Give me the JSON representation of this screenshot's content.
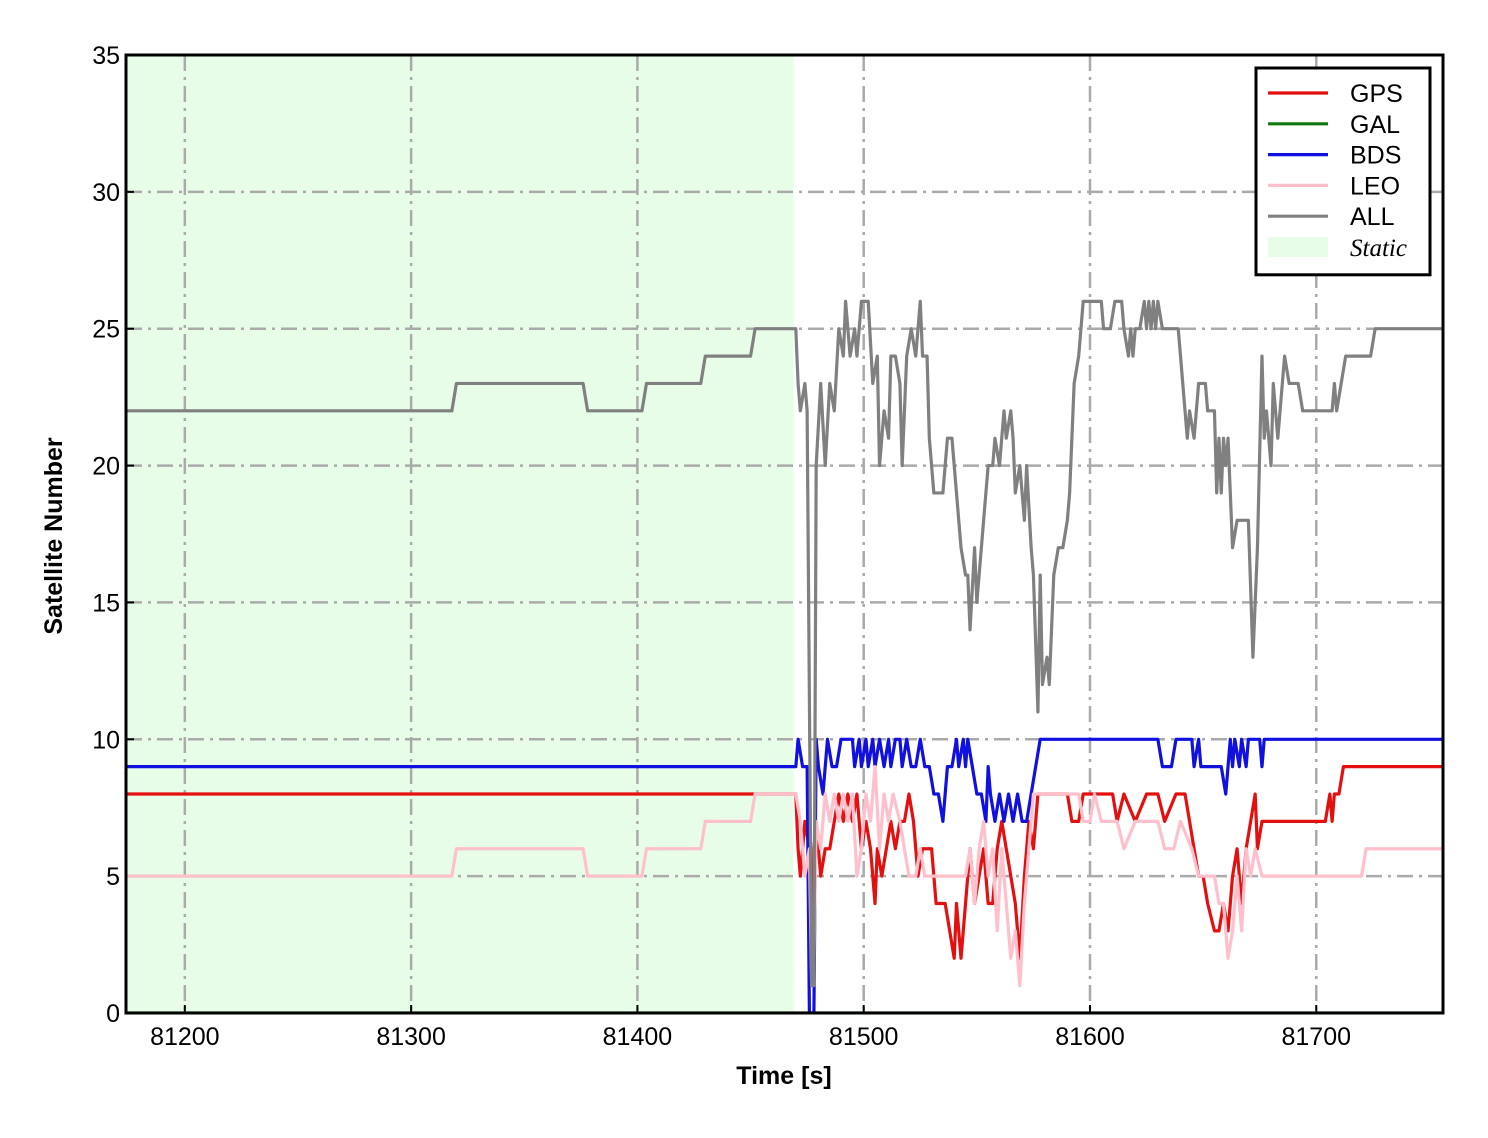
{
  "chart_data": {
    "type": "line",
    "xlabel": "Time [s]",
    "ylabel": "Satellite Number",
    "xlim": [
      81174,
      81756
    ],
    "ylim": [
      0,
      35
    ],
    "xticks": [
      81200,
      81300,
      81400,
      81500,
      81600,
      81700
    ],
    "yticks": [
      0,
      5,
      10,
      15,
      20,
      25,
      30,
      35
    ],
    "grid": true,
    "legend": "upper right",
    "static_span": {
      "label": "Static",
      "xlim": [
        81174,
        81469
      ],
      "color": "#e8fde8"
    },
    "series": [
      {
        "name": "GPS",
        "color": "#e41010",
        "x": [
          81174,
          81470,
          81471,
          81472,
          81474,
          81476,
          81477,
          81478,
          81479,
          81481,
          81483,
          81485,
          81487,
          81489,
          81491,
          81493,
          81495,
          81497,
          81499,
          81501,
          81503,
          81505,
          81506,
          81508,
          81510,
          81512,
          81514,
          81516,
          81518,
          81520,
          81522,
          81524,
          81526,
          81530,
          81532,
          81536,
          81538,
          81540,
          81541,
          81543,
          81545,
          81547,
          81549,
          81551,
          81553,
          81555,
          81557,
          81559,
          81561,
          81563,
          81565,
          81567,
          81569,
          81571,
          81573,
          81575,
          81577,
          81590,
          81592,
          81595,
          81597,
          81610,
          81612,
          81615,
          81620,
          81625,
          81630,
          81633,
          81638,
          81642,
          81644,
          81646,
          81648,
          81650,
          81652,
          81655,
          81657,
          81659,
          81661,
          81663,
          81665,
          81667,
          81669,
          81671,
          81673,
          81674,
          81676,
          81704,
          81706,
          81707,
          81708,
          81710,
          81712,
          81756
        ],
        "values": [
          8,
          8,
          6,
          5,
          7,
          6,
          1,
          6,
          7,
          5,
          6,
          6,
          7,
          8,
          7,
          8,
          7,
          8,
          6,
          7,
          6,
          4,
          6,
          5,
          6,
          7,
          6,
          7,
          7,
          8,
          7,
          5,
          6,
          6,
          4,
          4,
          3,
          2,
          4,
          2,
          4,
          6,
          4,
          5,
          6,
          4,
          4,
          6,
          7,
          6,
          5,
          4,
          2,
          5,
          7,
          6,
          8,
          8,
          7,
          7,
          8,
          8,
          7,
          8,
          7,
          8,
          8,
          7,
          8,
          8,
          7,
          6,
          5,
          5,
          4,
          3,
          3,
          4,
          3,
          5,
          6,
          4,
          6,
          7,
          8,
          6,
          7,
          7,
          8,
          7,
          8,
          8,
          9,
          9
        ]
      },
      {
        "name": "GAL",
        "color": "#127a12",
        "x": [
          81174,
          81756
        ],
        "values": [
          0,
          0
        ]
      },
      {
        "name": "BDS",
        "color": "#1010e0",
        "x": [
          81174,
          81470,
          81471,
          81473,
          81475,
          81476,
          81478,
          81479,
          81480,
          81482,
          81484,
          81486,
          81488,
          81490,
          81495,
          81496,
          81498,
          81499,
          81501,
          81502,
          81504,
          81505,
          81507,
          81509,
          81511,
          81512,
          81514,
          81516,
          81517,
          81519,
          81521,
          81523,
          81525,
          81527,
          81529,
          81531,
          81533,
          81535,
          81537,
          81539,
          81541,
          81542,
          81544,
          81545,
          81546,
          81548,
          81550,
          81552,
          81554,
          81555,
          81556,
          81558,
          81560,
          81562,
          81564,
          81566,
          81568,
          81570,
          81572,
          81574,
          81576,
          81578,
          81630,
          81632,
          81636,
          81638,
          81645,
          81646,
          81648,
          81649,
          81658,
          81660,
          81662,
          81663,
          81664,
          81666,
          81667,
          81669,
          81670,
          81675,
          81676,
          81677,
          81756
        ],
        "values": [
          9,
          9,
          10,
          9,
          9,
          0,
          0,
          10,
          9,
          8,
          10,
          9,
          9,
          10,
          10,
          9,
          10,
          9,
          10,
          9,
          10,
          9,
          10,
          9,
          10,
          9,
          10,
          10,
          9,
          10,
          9,
          9,
          10,
          9,
          9,
          8,
          8,
          7,
          9,
          9,
          10,
          9,
          10,
          9,
          10,
          9,
          8,
          8,
          7,
          9,
          8,
          7,
          8,
          7,
          8,
          7,
          8,
          7,
          7,
          8,
          9,
          10,
          10,
          9,
          9,
          10,
          10,
          9,
          10,
          9,
          9,
          8,
          10,
          9,
          10,
          9,
          10,
          9,
          10,
          10,
          9,
          10,
          10
        ]
      },
      {
        "name": "LEO",
        "color": "#ffc0cb",
        "x": [
          81174,
          81318,
          81320,
          81376,
          81378,
          81402,
          81404,
          81428,
          81430,
          81450,
          81452,
          81470,
          81472,
          81474,
          81476,
          81477,
          81478,
          81479,
          81481,
          81483,
          81485,
          81487,
          81489,
          81491,
          81493,
          81495,
          81497,
          81499,
          81501,
          81503,
          81505,
          81507,
          81509,
          81511,
          81513,
          81516,
          81518,
          81520,
          81523,
          81525,
          81527,
          81545,
          81547,
          81549,
          81551,
          81553,
          81555,
          81557,
          81559,
          81561,
          81563,
          81565,
          81567,
          81569,
          81571,
          81573,
          81575,
          81595,
          81597,
          81600,
          81602,
          81605,
          81612,
          81615,
          81620,
          81630,
          81633,
          81637,
          81640,
          81645,
          81648,
          81655,
          81657,
          81659,
          81661,
          81663,
          81665,
          81667,
          81669,
          81671,
          81673,
          81676,
          81720,
          81722,
          81756
        ],
        "values": [
          5,
          5,
          6,
          6,
          5,
          5,
          6,
          6,
          7,
          7,
          8,
          8,
          7,
          5,
          6,
          1,
          2,
          7,
          6,
          8,
          7,
          8,
          7,
          8,
          7,
          8,
          5,
          6,
          8,
          7,
          9,
          6,
          8,
          7,
          8,
          7,
          6,
          5,
          5,
          6,
          5,
          5,
          6,
          4,
          6,
          7,
          5,
          6,
          3,
          6,
          4,
          2,
          3,
          1,
          4,
          6,
          8,
          8,
          7,
          7,
          8,
          7,
          7,
          6,
          7,
          7,
          6,
          6,
          7,
          6,
          5,
          5,
          4,
          4,
          2,
          3,
          5,
          3,
          6,
          5,
          6,
          5,
          5,
          6,
          6
        ]
      },
      {
        "name": "ALL",
        "color": "#808080",
        "x": [
          81174,
          81318,
          81320,
          81376,
          81378,
          81402,
          81404,
          81428,
          81430,
          81450,
          81452,
          81470,
          81471,
          81472,
          81474,
          81475,
          81477,
          81478,
          81479,
          81481,
          81483,
          81485,
          81487,
          81489,
          81491,
          81492,
          81494,
          81496,
          81497,
          81499,
          81502,
          81504,
          81506,
          81507,
          81509,
          81511,
          81512,
          81514,
          81516,
          81517,
          81519,
          81521,
          81523,
          81525,
          81526,
          81528,
          81529,
          81531,
          81535,
          81537,
          81539,
          81541,
          81543,
          81545,
          81546,
          81547,
          81549,
          81550,
          81553,
          81555,
          81557,
          81558,
          81560,
          81562,
          81563,
          81565,
          81566,
          81567,
          81569,
          81571,
          81572,
          81574,
          81575,
          81577,
          81578,
          81579,
          81581,
          81582,
          81584,
          81586,
          81588,
          81590,
          81591,
          81593,
          81595,
          81597,
          81605,
          81606,
          81609,
          81611,
          81614,
          81615,
          81617,
          81618,
          81619,
          81620,
          81622,
          81624,
          81625,
          81626,
          81627,
          81628,
          81629,
          81630,
          81632,
          81639,
          81641,
          81643,
          81644,
          81646,
          81648,
          81651,
          81652,
          81655,
          81656,
          81657,
          81658,
          81659,
          81660,
          81661,
          81663,
          81665,
          81670,
          81672,
          81674,
          81676,
          81677,
          81678,
          81680,
          81681,
          81683,
          81684,
          81686,
          81688,
          81692,
          81694,
          81707,
          81708,
          81709,
          81711,
          81713,
          81724,
          81726,
          81756
        ],
        "values": [
          22,
          22,
          23,
          23,
          22,
          22,
          23,
          23,
          24,
          24,
          25,
          25,
          23,
          22,
          23,
          22,
          1,
          1,
          20,
          23,
          20,
          23,
          22,
          25,
          24,
          26,
          24,
          25,
          24,
          26,
          26,
          23,
          24,
          20,
          22,
          21,
          24,
          24,
          23,
          20,
          24,
          25,
          24,
          26,
          24,
          24,
          21,
          19,
          19,
          21,
          21,
          19,
          17,
          16,
          16,
          14,
          17,
          15,
          18,
          20,
          20,
          21,
          20,
          22,
          21,
          22,
          21,
          19,
          20,
          18,
          20,
          17,
          16,
          11,
          16,
          12,
          13,
          12,
          16,
          17,
          17,
          18,
          19,
          23,
          24,
          26,
          26,
          25,
          25,
          26,
          26,
          25,
          24,
          25,
          24,
          25,
          25,
          26,
          25,
          26,
          25,
          26,
          25,
          26,
          25,
          25,
          23,
          21,
          22,
          21,
          23,
          23,
          22,
          22,
          19,
          21,
          19,
          21,
          20,
          21,
          17,
          18,
          18,
          13,
          17,
          24,
          21,
          22,
          20,
          23,
          21,
          22,
          24,
          23,
          23,
          22,
          22,
          23,
          22,
          23,
          24,
          24,
          25,
          25
        ]
      }
    ]
  }
}
